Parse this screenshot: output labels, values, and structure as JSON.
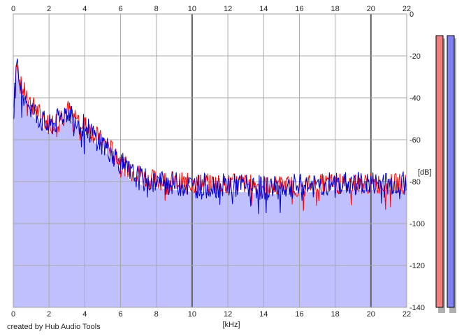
{
  "chart_data": {
    "type": "area",
    "xlabel": "[kHz]",
    "ylabel": "[dB]",
    "xlim": [
      0,
      22
    ],
    "ylim": [
      -140,
      0
    ],
    "x_ticks": [
      0,
      2,
      4,
      6,
      8,
      10,
      12,
      14,
      16,
      18,
      20,
      22
    ],
    "y_ticks_right": [
      "0",
      "-20",
      "-40",
      "-60",
      "-80",
      "-100",
      "-120",
      "-140"
    ],
    "y_tick_values": [
      0,
      -20,
      -40,
      -60,
      -80,
      -100,
      -120,
      -140
    ],
    "grid": true,
    "x_major_grid": [
      10,
      20
    ],
    "fill_color": "#c0c0ff",
    "series": [
      {
        "color": "#ff0000",
        "x": [
          0.0,
          0.1,
          0.2,
          0.3,
          0.4,
          0.6,
          0.8,
          1.0,
          1.3,
          1.6,
          2.0,
          2.5,
          3.0,
          3.5,
          4.0,
          4.5,
          5.0,
          5.5,
          6.0,
          6.5,
          7.0,
          7.5,
          8.0,
          9.0,
          10.0,
          11.0,
          12.0,
          13.0,
          14.0,
          15.0,
          16.0,
          17.0,
          18.0,
          19.0,
          20.0,
          21.0,
          22.0
        ],
        "values": [
          -45,
          -30,
          -22,
          -28,
          -34,
          -37,
          -40,
          -43,
          -46,
          -49,
          -53,
          -50,
          -45,
          -49,
          -53,
          -57,
          -61,
          -65,
          -70,
          -75,
          -76,
          -79,
          -79,
          -80,
          -81,
          -81,
          -81,
          -81,
          -82,
          -82,
          -82,
          -81,
          -81,
          -81,
          -81,
          -81,
          -81
        ]
      },
      {
        "color": "#0000d0",
        "x": [
          0.0,
          0.1,
          0.2,
          0.3,
          0.4,
          0.6,
          0.8,
          1.0,
          1.3,
          1.6,
          2.0,
          2.5,
          3.0,
          3.5,
          4.0,
          4.5,
          5.0,
          5.5,
          6.0,
          6.5,
          7.0,
          7.5,
          8.0,
          9.0,
          10.0,
          11.0,
          12.0,
          13.0,
          14.0,
          15.0,
          16.0,
          17.0,
          18.0,
          19.0,
          20.0,
          21.0,
          22.0
        ],
        "values": [
          -48,
          -32,
          -25,
          -30,
          -36,
          -38,
          -41,
          -45,
          -48,
          -51,
          -54,
          -51,
          -46,
          -50,
          -54,
          -58,
          -62,
          -66,
          -71,
          -76,
          -78,
          -80,
          -80,
          -81,
          -82,
          -82,
          -82,
          -82,
          -83,
          -83,
          -82,
          -82,
          -81,
          -81,
          -81,
          -81,
          -81
        ]
      }
    ],
    "level_meters": [
      {
        "color": "#f08080"
      },
      {
        "color": "#8080f0"
      }
    ]
  },
  "footer": {
    "credit": "created by Hub Audio Tools"
  }
}
